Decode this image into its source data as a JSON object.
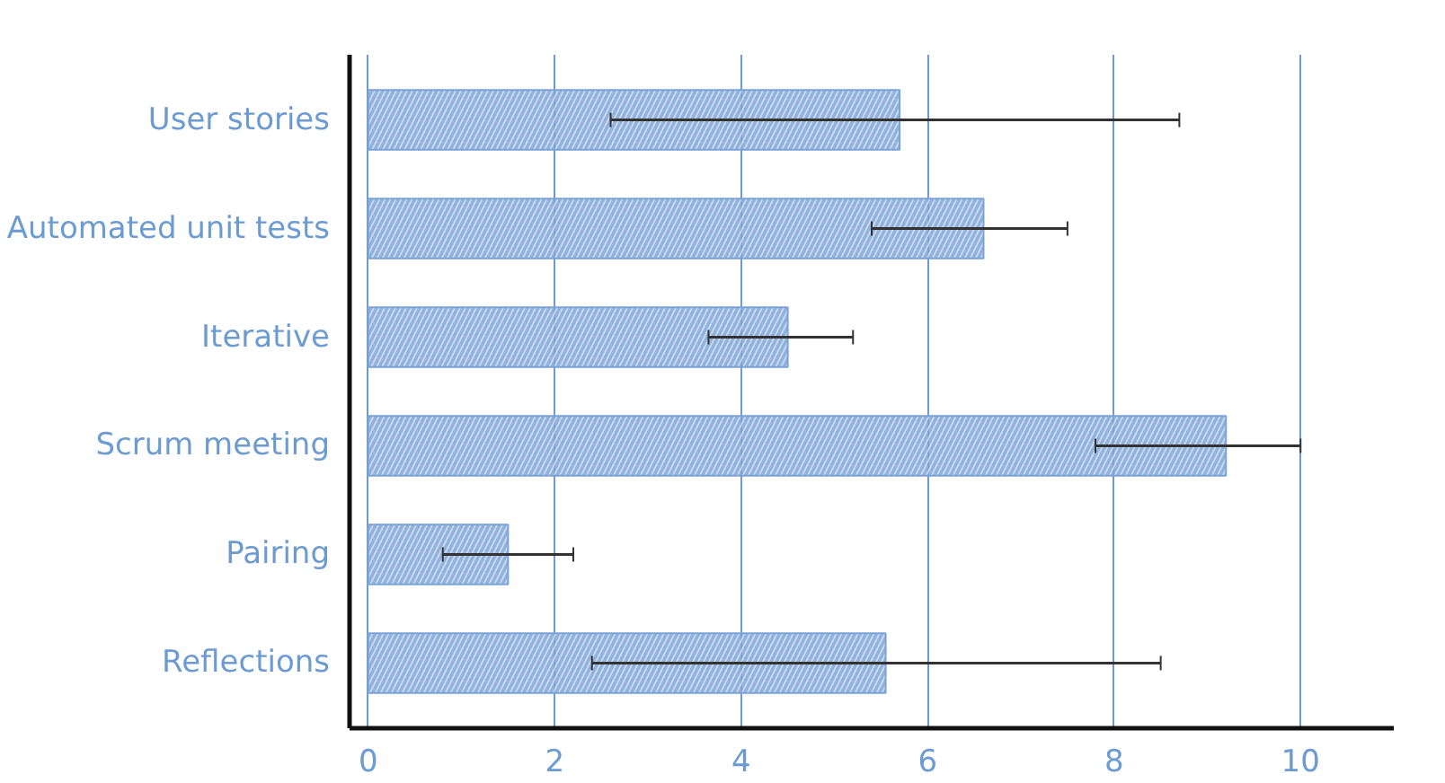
{
  "chart_data": {
    "type": "bar",
    "orientation": "horizontal",
    "categories": [
      "User stories",
      "Automated unit tests",
      "Iterative",
      "Scrum meeting",
      "Pairing",
      "Reflections"
    ],
    "values": [
      5.7,
      6.6,
      4.5,
      9.2,
      1.5,
      5.55
    ],
    "errors": [
      [
        2.6,
        8.7
      ],
      [
        5.4,
        7.5
      ],
      [
        3.65,
        5.2
      ],
      [
        7.8,
        10.0
      ],
      [
        0.8,
        2.2
      ],
      [
        2.4,
        8.5
      ]
    ],
    "color": "#7ba3d6",
    "xlim": [
      -0.2,
      11
    ],
    "xticks": [
      0,
      2,
      4,
      6,
      8,
      10
    ],
    "grid": "x"
  }
}
